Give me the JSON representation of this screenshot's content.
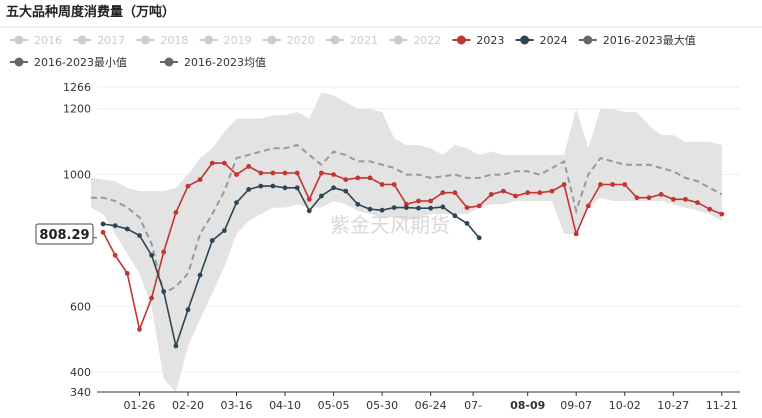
{
  "chart_data": {
    "type": "line",
    "title": "五大品种周度消费量（万吨）",
    "watermark": "紫金天风期货",
    "legend": [
      {
        "name": "2016",
        "color": "#cccccc",
        "marker": "dot",
        "active": false
      },
      {
        "name": "2017",
        "color": "#cccccc",
        "marker": "dot",
        "active": false
      },
      {
        "name": "2018",
        "color": "#cccccc",
        "marker": "dot",
        "active": false
      },
      {
        "name": "2019",
        "color": "#cccccc",
        "marker": "dot",
        "active": false
      },
      {
        "name": "2020",
        "color": "#cccccc",
        "marker": "dot",
        "active": false
      },
      {
        "name": "2021",
        "color": "#cccccc",
        "marker": "dot",
        "active": false
      },
      {
        "name": "2022",
        "color": "#cccccc",
        "marker": "dot",
        "active": false
      },
      {
        "name": "2023",
        "color": "#c23531",
        "marker": "dot",
        "active": true
      },
      {
        "name": "2024",
        "color": "#2f4554",
        "marker": "dot",
        "active": true
      },
      {
        "name": "2016-2023最大值",
        "color": "#666666",
        "marker": "dot",
        "active": true
      },
      {
        "name": "2016-2023最小值",
        "color": "#666666",
        "marker": "dot",
        "active": true
      },
      {
        "name": "2016-2023均值",
        "color": "#666666",
        "marker": "dot",
        "active": true
      }
    ],
    "x_ticks": [
      "01-26",
      "02-20",
      "03-16",
      "04-10",
      "05-05",
      "05-30",
      "06-24",
      "07-",
      "08-09",
      "09-07",
      "10-02",
      "10-27",
      "11-21"
    ],
    "x_tick_week": [
      4,
      8,
      12,
      16,
      20,
      24,
      28,
      31.5,
      36,
      40,
      44,
      48,
      52
    ],
    "highlight_x_label": "08-09",
    "y_ticks": [
      340,
      400,
      600,
      1000,
      1200,
      1266
    ],
    "ylim": [
      340,
      1266
    ],
    "pointer_value": "808.29",
    "pointer_y_value": 808.29,
    "series": [
      {
        "name": "2023",
        "color": "#c23531",
        "week_start": 1,
        "values": [
          825,
          755,
          700,
          530,
          625,
          765,
          885,
          965,
          985,
          1035,
          1035,
          1000,
          1025,
          1005,
          1005,
          1005,
          1005,
          925,
          1005,
          1000,
          985,
          990,
          990,
          970,
          970,
          910,
          920,
          920,
          945,
          945,
          900,
          905,
          940,
          950,
          935,
          945,
          945,
          950,
          970,
          820,
          905,
          970,
          970,
          970,
          930,
          930,
          940,
          925,
          925,
          915,
          895,
          880
        ]
      },
      {
        "name": "2024",
        "color": "#2f4554",
        "week_start": 1,
        "values": [
          850,
          845,
          835,
          815,
          755,
          645,
          480,
          590,
          695,
          800,
          830,
          915,
          955,
          965,
          965,
          960,
          960,
          890,
          935,
          960,
          950,
          910,
          895,
          892,
          900,
          900,
          898,
          898,
          902,
          875,
          852,
          808.29
        ]
      },
      {
        "name": "2016-2023均值",
        "color": "#999999",
        "week_start": 0,
        "values": [
          930,
          930,
          920,
          900,
          870,
          790,
          640,
          660,
          700,
          820,
          880,
          950,
          1050,
          1060,
          1070,
          1080,
          1080,
          1090,
          1060,
          1030,
          1070,
          1060,
          1040,
          1040,
          1030,
          1020,
          1000,
          1000,
          990,
          995,
          1000,
          990,
          990,
          1000,
          1000,
          1010,
          1010,
          1000,
          1020,
          1040,
          890,
          1000,
          1050,
          1040,
          1030,
          1030,
          1030,
          1020,
          1010,
          990,
          980,
          960,
          940
        ]
      },
      {
        "name": "2016-2023最大值",
        "color": "#e3e3e3",
        "week_start": 0,
        "values": [
          990,
          985,
          980,
          960,
          950,
          950,
          950,
          960,
          1000,
          1050,
          1080,
          1130,
          1170,
          1170,
          1170,
          1180,
          1180,
          1190,
          1170,
          1250,
          1240,
          1220,
          1200,
          1200,
          1190,
          1110,
          1090,
          1090,
          1080,
          1060,
          1090,
          1080,
          1060,
          1070,
          1060,
          1060,
          1060,
          1060,
          1060,
          1060,
          1200,
          1080,
          1200,
          1200,
          1190,
          1190,
          1150,
          1120,
          1120,
          1100,
          1100,
          1100,
          1090
        ]
      },
      {
        "name": "2016-2023最小值",
        "color": "#e3e3e3",
        "week_start": 0,
        "values": [
          900,
          880,
          820,
          760,
          700,
          600,
          380,
          340,
          480,
          560,
          640,
          720,
          820,
          860,
          880,
          900,
          900,
          910,
          900,
          900,
          920,
          910,
          890,
          880,
          870,
          870,
          860,
          870,
          880,
          880,
          880,
          880,
          900,
          910,
          910,
          920,
          920,
          920,
          920,
          820,
          820,
          900,
          930,
          920,
          920,
          920,
          920,
          920,
          910,
          900,
          890,
          880,
          860
        ]
      }
    ]
  }
}
